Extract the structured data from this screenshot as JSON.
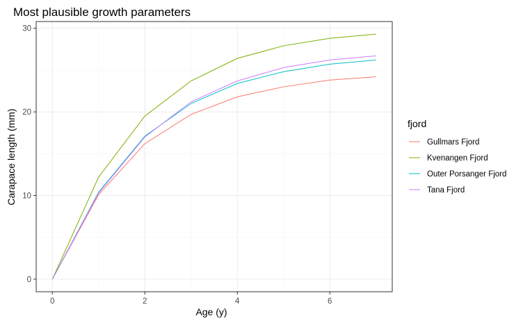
{
  "chart_data": {
    "type": "line",
    "title": "Most plausible growth parameters",
    "xlabel": "Age (y)",
    "ylabel": "Carapace length (mm)",
    "xlim": [
      -0.35,
      7.35
    ],
    "ylim": [
      -1.5,
      30.8
    ],
    "xticks": [
      0,
      2,
      4,
      6
    ],
    "yticks": [
      0,
      10,
      20,
      30
    ],
    "grid": true,
    "legend_position": "right",
    "legend_title": "fjord",
    "x": [
      0,
      1,
      2,
      3,
      4,
      5,
      6,
      7
    ],
    "series": [
      {
        "name": "Gullmars Fjord",
        "color": "#F8766D",
        "values": [
          0,
          10.1,
          16.2,
          19.7,
          21.8,
          23.0,
          23.8,
          24.2
        ]
      },
      {
        "name": "Kvenangen Fjord",
        "color": "#7CAE00",
        "values": [
          0,
          12.2,
          19.5,
          23.7,
          26.4,
          27.9,
          28.8,
          29.3
        ]
      },
      {
        "name": "Outer Porsanger Fjord",
        "color": "#00BFC4",
        "values": [
          0,
          10.4,
          17.1,
          21.0,
          23.4,
          24.8,
          25.7,
          26.2
        ]
      },
      {
        "name": "Tana Fjord",
        "color": "#C77CFF",
        "values": [
          0,
          10.3,
          17.0,
          21.2,
          23.7,
          25.3,
          26.2,
          26.7
        ]
      }
    ]
  }
}
